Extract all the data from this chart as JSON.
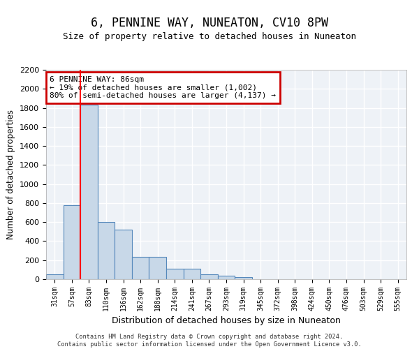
{
  "title": "6, PENNINE WAY, NUNEATON, CV10 8PW",
  "subtitle": "Size of property relative to detached houses in Nuneaton",
  "xlabel": "Distribution of detached houses by size in Nuneaton",
  "ylabel": "Number of detached properties",
  "bin_labels": [
    "31sqm",
    "57sqm",
    "83sqm",
    "110sqm",
    "136sqm",
    "162sqm",
    "188sqm",
    "214sqm",
    "241sqm",
    "267sqm",
    "293sqm",
    "319sqm",
    "345sqm",
    "372sqm",
    "398sqm",
    "424sqm",
    "450sqm",
    "476sqm",
    "503sqm",
    "529sqm",
    "555sqm"
  ],
  "bar_heights": [
    50,
    780,
    1830,
    600,
    520,
    235,
    235,
    110,
    110,
    50,
    35,
    25,
    0,
    0,
    0,
    0,
    0,
    0,
    0,
    0,
    0
  ],
  "bar_color": "#c8d8e8",
  "bar_edge_color": "#5588bb",
  "red_line_bin": 2,
  "annotation_text": "6 PENNINE WAY: 86sqm\n← 19% of detached houses are smaller (1,002)\n80% of semi-detached houses are larger (4,137) →",
  "annotation_edge_color": "#cc0000",
  "ylim": [
    0,
    2200
  ],
  "ytick_step": 200,
  "footer_text": "Contains HM Land Registry data © Crown copyright and database right 2024.\nContains public sector information licensed under the Open Government Licence v3.0.",
  "plot_bg_color": "#eef2f7"
}
